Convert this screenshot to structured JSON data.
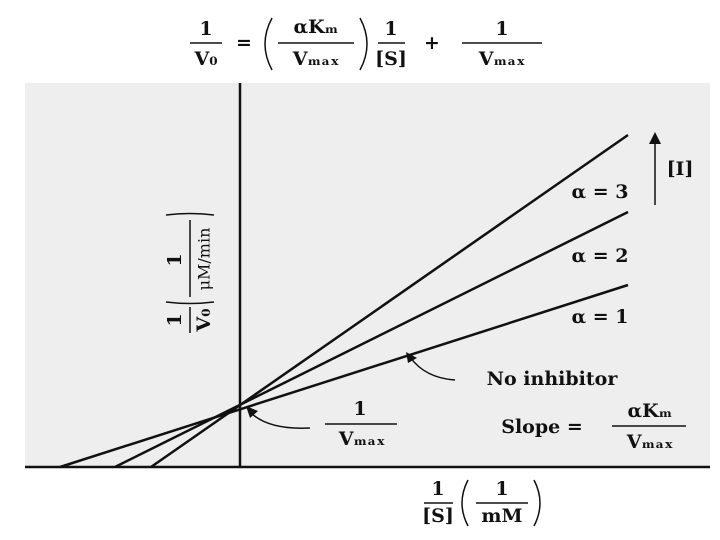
{
  "equation": {
    "lhs_num": "1",
    "lhs_den": "V₀",
    "equals": "=",
    "slope_num": "αKₘ",
    "slope_den": "Vₘₐₓ",
    "s_num": "1",
    "s_den": "[S]",
    "plus": "+",
    "int_num": "1",
    "int_den": "Vₘₐₓ"
  },
  "y_axis_label": {
    "num": "1",
    "den": "V₀",
    "unit_num": "1",
    "unit_den": "μM/min"
  },
  "x_axis_label": {
    "num": "1",
    "den": "[S]",
    "unit_num": "1",
    "unit_den": "mM"
  },
  "lines": [
    {
      "label": "α = 3"
    },
    {
      "label": "α = 2"
    },
    {
      "label": "α = 1"
    }
  ],
  "inhibitor_arrow_label": "[I]",
  "no_inhibitor_label": "No inhibitor",
  "intercept_label": {
    "num": "1",
    "den": "Vₘₐₓ"
  },
  "slope_label": {
    "prefix": "Slope =",
    "num": "αKₘ",
    "den": "Vₘₐₓ"
  }
}
